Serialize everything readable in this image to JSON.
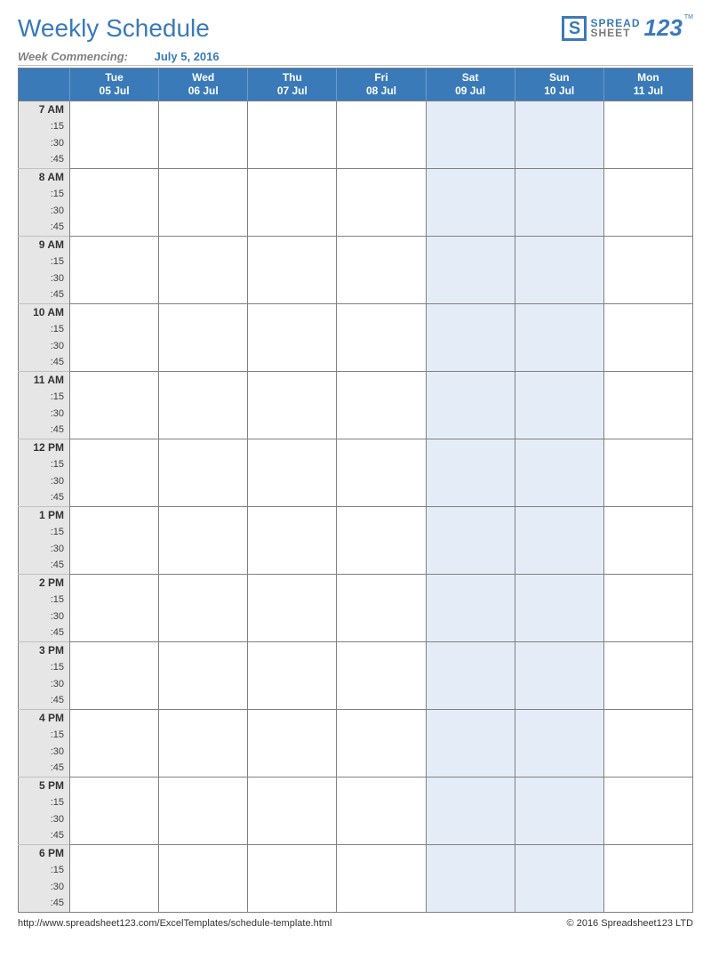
{
  "title": "Weekly Schedule",
  "logo": {
    "spread": "SPREAD",
    "sheet": "SHEET",
    "digits": "123",
    "tm": "TM"
  },
  "week_commencing_label": "Week Commencing:",
  "week_commencing_date": "July 5, 2016",
  "days": [
    {
      "name": "Tue",
      "date": "05 Jul",
      "weekend": false
    },
    {
      "name": "Wed",
      "date": "06 Jul",
      "weekend": false
    },
    {
      "name": "Thu",
      "date": "07 Jul",
      "weekend": false
    },
    {
      "name": "Fri",
      "date": "08 Jul",
      "weekend": false
    },
    {
      "name": "Sat",
      "date": "09 Jul",
      "weekend": true
    },
    {
      "name": "Sun",
      "date": "10 Jul",
      "weekend": true
    },
    {
      "name": "Mon",
      "date": "11 Jul",
      "weekend": false
    }
  ],
  "hours": [
    "7 AM",
    "8 AM",
    "9 AM",
    "10 AM",
    "11 AM",
    "12 PM",
    "1 PM",
    "2 PM",
    "3 PM",
    "4 PM",
    "5 PM",
    "6 PM"
  ],
  "sub_intervals": [
    ":15",
    ":30",
    ":45"
  ],
  "colors": {
    "header_bg": "#3a7ab8",
    "header_text": "#ffffff",
    "time_col_bg": "#e6e6e6",
    "weekend_bg": "#e4edf7",
    "border": "#808080",
    "title_color": "#3a7ab8"
  },
  "footer": {
    "url": "http://www.spreadsheet123.com/ExcelTemplates/schedule-template.html",
    "copyright": "© 2016 Spreadsheet123 LTD"
  }
}
